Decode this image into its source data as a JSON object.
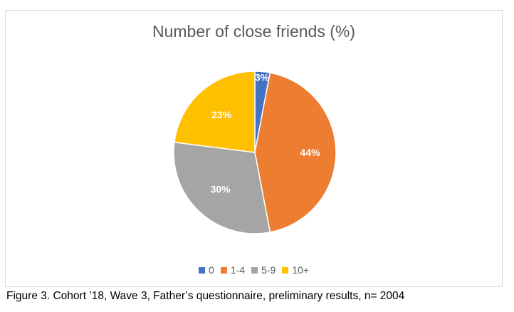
{
  "chart_data": {
    "type": "pie",
    "title": "Number of close friends (%)",
    "categories": [
      "0",
      "1-4",
      "5-9",
      "10+"
    ],
    "values": [
      3,
      44,
      30,
      23
    ],
    "data_labels": [
      "3%",
      "44%",
      "30%",
      "23%"
    ],
    "colors": [
      "#4472c4",
      "#ed7d31",
      "#a5a5a5",
      "#ffc000"
    ],
    "legend_position": "bottom"
  },
  "caption": "Figure 3. Cohort ’18, Wave 3, Father’s questionnaire, preliminary results, n= 2004"
}
